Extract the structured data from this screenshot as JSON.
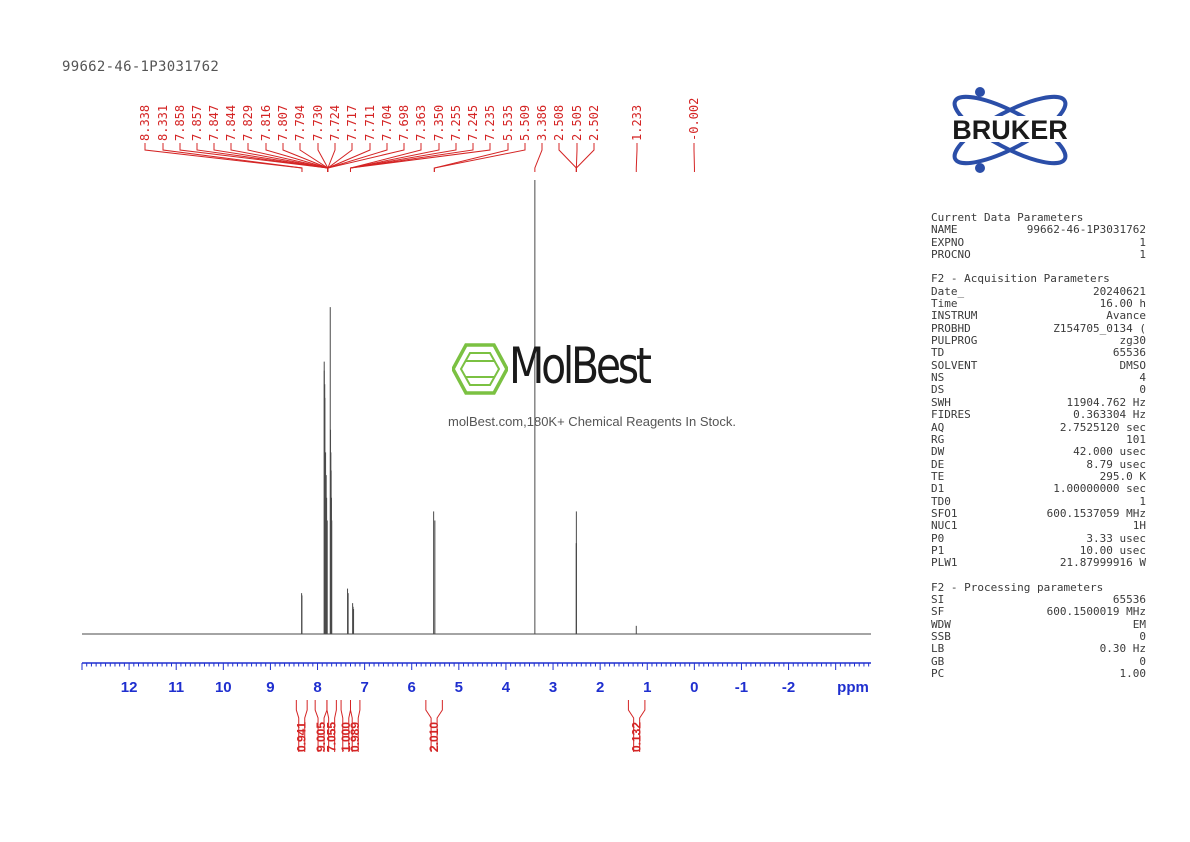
{
  "sample_id": "99662-46-1P3031762",
  "logo_text": "BRUKER",
  "watermark": {
    "brand": "MolBest",
    "tagline": "molBest.com,180K+ Chemical Reagents In Stock."
  },
  "params": {
    "current": {
      "header": "Current Data Parameters",
      "rows": [
        [
          "NAME",
          "99662-46-1P3031762"
        ],
        [
          "EXPNO",
          "1"
        ],
        [
          "PROCNO",
          "1"
        ]
      ]
    },
    "acquisition": {
      "header": "F2 - Acquisition Parameters",
      "rows": [
        [
          "Date_",
          "20240621"
        ],
        [
          "Time",
          "16.00 h"
        ],
        [
          "INSTRUM",
          "Avance"
        ],
        [
          "PROBHD",
          "Z154705_0134 ("
        ],
        [
          "PULPROG",
          "zg30"
        ],
        [
          "TD",
          "65536"
        ],
        [
          "SOLVENT",
          "DMSO"
        ],
        [
          "NS",
          "4"
        ],
        [
          "DS",
          "0"
        ],
        [
          "SWH",
          "11904.762 Hz"
        ],
        [
          "FIDRES",
          "0.363304 Hz"
        ],
        [
          "AQ",
          "2.7525120 sec"
        ],
        [
          "RG",
          "101"
        ],
        [
          "DW",
          "42.000 usec"
        ],
        [
          "DE",
          "8.79 usec"
        ],
        [
          "TE",
          "295.0 K"
        ],
        [
          "D1",
          "1.00000000 sec"
        ],
        [
          "TD0",
          "1"
        ],
        [
          "SFO1",
          "600.1537059 MHz"
        ],
        [
          "NUC1",
          "1H"
        ],
        [
          "P0",
          "3.33 usec"
        ],
        [
          "P1",
          "10.00 usec"
        ],
        [
          "PLW1",
          "21.87999916 W"
        ]
      ]
    },
    "processing": {
      "header": "F2 - Processing parameters",
      "rows": [
        [
          "SI",
          "65536"
        ],
        [
          "SF",
          "600.1500019 MHz"
        ],
        [
          "WDW",
          "EM"
        ],
        [
          "SSB",
          "0"
        ],
        [
          "LB",
          "0.30 Hz"
        ],
        [
          "GB",
          "0"
        ],
        [
          "PC",
          "1.00"
        ]
      ]
    }
  },
  "chart_data": {
    "type": "line",
    "xlabel": "ppm",
    "x_reversed": true,
    "xlim": [
      13.0,
      -3.75
    ],
    "xticks": [
      12,
      11,
      10,
      9,
      8,
      7,
      6,
      5,
      4,
      3,
      2,
      1,
      0,
      -1,
      -2
    ],
    "xtick_labels": [
      "12",
      "11",
      "10",
      "9",
      "8",
      "7",
      "6",
      "5",
      "4",
      "3",
      "2",
      "1",
      "0",
      "-1",
      "-2"
    ],
    "y_relative_max": 1.0,
    "series": [
      {
        "peaks": [
          {
            "ppm": 8.338,
            "height": 0.09
          },
          {
            "ppm": 8.331,
            "height": 0.085
          },
          {
            "ppm": 7.858,
            "height": 0.6
          },
          {
            "ppm": 7.857,
            "height": 0.58
          },
          {
            "ppm": 7.847,
            "height": 0.55
          },
          {
            "ppm": 7.844,
            "height": 0.52
          },
          {
            "ppm": 7.829,
            "height": 0.4
          },
          {
            "ppm": 7.816,
            "height": 0.35
          },
          {
            "ppm": 7.807,
            "height": 0.3
          },
          {
            "ppm": 7.794,
            "height": 0.25
          },
          {
            "ppm": 7.73,
            "height": 0.72
          },
          {
            "ppm": 7.724,
            "height": 0.45
          },
          {
            "ppm": 7.717,
            "height": 0.4
          },
          {
            "ppm": 7.711,
            "height": 0.36
          },
          {
            "ppm": 7.704,
            "height": 0.3
          },
          {
            "ppm": 7.698,
            "height": 0.25
          },
          {
            "ppm": 7.363,
            "height": 0.1
          },
          {
            "ppm": 7.35,
            "height": 0.09
          },
          {
            "ppm": 7.255,
            "height": 0.068
          },
          {
            "ppm": 7.245,
            "height": 0.06
          },
          {
            "ppm": 7.235,
            "height": 0.055
          },
          {
            "ppm": 5.535,
            "height": 0.27
          },
          {
            "ppm": 5.509,
            "height": 0.25
          },
          {
            "ppm": 3.386,
            "height": 1.0
          },
          {
            "ppm": 2.508,
            "height": 0.2
          },
          {
            "ppm": 2.505,
            "height": 0.27
          },
          {
            "ppm": 2.502,
            "height": 0.2
          },
          {
            "ppm": 1.233,
            "height": 0.018
          },
          {
            "ppm": -0.002,
            "height": 0.0
          }
        ]
      }
    ],
    "peak_labels": [
      "8.338",
      "8.331",
      "7.858",
      "7.857",
      "7.847",
      "7.844",
      "7.829",
      "7.816",
      "7.807",
      "7.794",
      "7.730",
      "7.724",
      "7.717",
      "7.711",
      "7.704",
      "7.698",
      "7.363",
      "7.350",
      "7.255",
      "7.245",
      "7.235",
      "5.535",
      "5.509",
      "3.386",
      "2.508",
      "2.505",
      "2.502",
      "1.233",
      "-0.002"
    ],
    "peak_groups": [
      {
        "labels": [
          "8.338",
          "8.331"
        ],
        "ppm": 8.33
      },
      {
        "labels": [
          "7.858",
          "7.857",
          "7.847",
          "7.844",
          "7.829",
          "7.816",
          "7.807",
          "7.794",
          "7.730",
          "7.724",
          "7.717",
          "7.711",
          "7.704",
          "7.698"
        ],
        "ppm": 7.78
      },
      {
        "labels": [
          "7.363",
          "7.350",
          "7.255",
          "7.245",
          "7.235"
        ],
        "ppm": 7.3
      },
      {
        "labels": [
          "5.535",
          "5.509"
        ],
        "ppm": 5.52
      },
      {
        "labels": [
          "3.386"
        ],
        "ppm": 3.386
      },
      {
        "labels": [
          "2.508",
          "2.505",
          "2.502"
        ],
        "ppm": 2.505
      },
      {
        "labels": [
          "1.233"
        ],
        "ppm": 1.233
      },
      {
        "labels": [
          "-0.002"
        ],
        "ppm": -0.002
      }
    ],
    "integrals": [
      {
        "value": "0.941",
        "from": 8.45,
        "to": 8.22
      },
      {
        "value": "9.005",
        "from": 8.05,
        "to": 7.8
      },
      {
        "value": "7.055",
        "from": 7.8,
        "to": 7.6
      },
      {
        "value": "1.000",
        "from": 7.5,
        "to": 7.3
      },
      {
        "value": "0.989",
        "from": 7.3,
        "to": 7.1
      },
      {
        "value": "2.010",
        "from": 5.7,
        "to": 5.35
      },
      {
        "value": "0.132",
        "from": 1.4,
        "to": 1.05
      }
    ],
    "colors": {
      "spectrum": "#4a4a4a",
      "axis": "#1f2fcf",
      "labels": "#d42424",
      "params": "#3a3a3a"
    }
  }
}
